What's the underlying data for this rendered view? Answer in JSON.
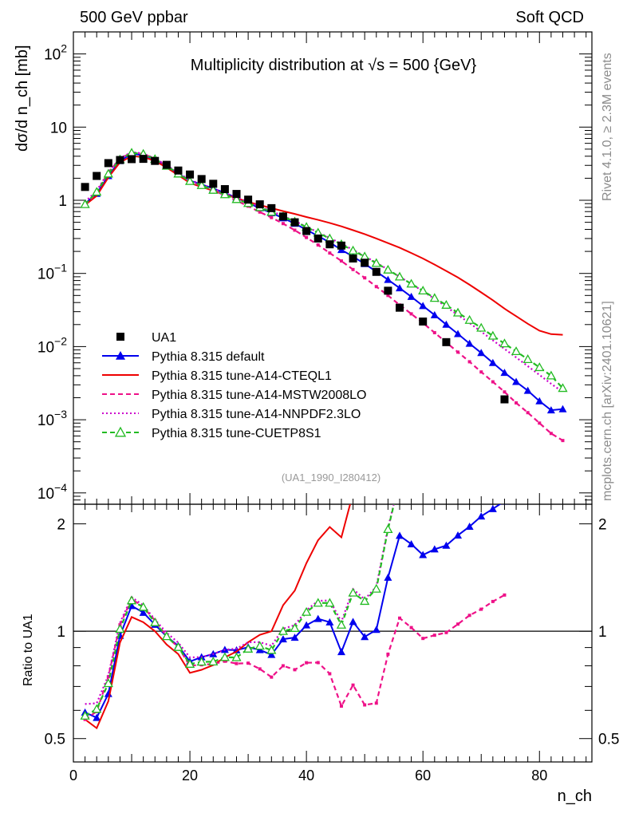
{
  "header": {
    "left": "500 GeV ppbar",
    "right": "Soft QCD"
  },
  "side_text": {
    "rivet": "Rivet 4.1.0, ≥ 2.3M events",
    "site": "mcplots.cern.ch [arXiv:2401.10621]"
  },
  "chart_data": {
    "type": "line",
    "title": "Multiplicity distribution at √s = 500 {GeV}",
    "analysis_label": "(UA1_1990_I280412)",
    "ylabel_main": "dσ/d n_ch [mb]",
    "ylabel_ratio": "Ratio to UA1",
    "xlabel": "n_ch",
    "xlim": [
      0,
      89
    ],
    "ylim_main": [
      7e-05,
      200
    ],
    "ylim_ratio": [
      0.43,
      2.27
    ],
    "yscale_main": "log",
    "yscale_ratio": "log",
    "x_ticks": [
      "0",
      "20",
      "40",
      "60",
      "80"
    ],
    "main_y_ticks": [
      "10^2",
      "10",
      "1",
      "10^-1",
      "10^-2",
      "10^-3",
      "10^-4"
    ],
    "ratio_y_ticks": [
      "2",
      "1",
      "0.5"
    ],
    "legend": [
      "UA1",
      "Pythia 8.315 default",
      "Pythia 8.315 tune-A14-CTEQL1",
      "Pythia 8.315 tune-A14-MSTW2008LO",
      "Pythia 8.315 tune-A14-NNPDF2.3LO",
      "Pythia 8.315 tune-CUETP8S1"
    ],
    "data": {
      "name": "UA1",
      "color": "#000000",
      "x": [
        2,
        4,
        6,
        8,
        10,
        12,
        14,
        16,
        18,
        20,
        22,
        24,
        26,
        28,
        30,
        32,
        34,
        36,
        38,
        40,
        42,
        44,
        46,
        48,
        50,
        52,
        54,
        56,
        60,
        64,
        74
      ],
      "y": [
        1.52,
        2.15,
        3.22,
        3.55,
        3.65,
        3.68,
        3.45,
        3.05,
        2.55,
        2.25,
        1.95,
        1.68,
        1.42,
        1.22,
        1.02,
        0.88,
        0.78,
        0.6,
        0.5,
        0.38,
        0.3,
        0.25,
        0.24,
        0.16,
        0.14,
        0.105,
        0.058,
        0.034,
        0.022,
        0.0115,
        0.0019
      ]
    },
    "x_mc": [
      2,
      4,
      6,
      8,
      10,
      12,
      14,
      16,
      18,
      20,
      22,
      24,
      26,
      28,
      30,
      32,
      34,
      36,
      38,
      40,
      42,
      44,
      46,
      48,
      50,
      52,
      54,
      56,
      58,
      60,
      62,
      64,
      66,
      68,
      70,
      72,
      74,
      76,
      78,
      80,
      82,
      84
    ],
    "series": [
      {
        "name": "Pythia 8.315 default",
        "color": "#0000ee",
        "style": "solid",
        "marker": "triangle-filled",
        "values": [
          0.9,
          1.23,
          2.15,
          3.45,
          4.3,
          4.15,
          3.6,
          2.95,
          2.32,
          1.85,
          1.65,
          1.45,
          1.26,
          1.08,
          0.92,
          0.78,
          0.67,
          0.57,
          0.48,
          0.395,
          0.325,
          0.265,
          0.21,
          0.17,
          0.135,
          0.106,
          0.082,
          0.063,
          0.048,
          0.036,
          0.027,
          0.02,
          0.0149,
          0.011,
          0.0082,
          0.006,
          0.0044,
          0.0033,
          0.0025,
          0.0018,
          0.00135,
          0.0014
        ]
      },
      {
        "name": "Pythia 8.315 tune-A14-CTEQL1",
        "color": "#ee0000",
        "style": "solid",
        "marker": "none",
        "values": [
          0.86,
          1.15,
          2.05,
          3.3,
          4.0,
          3.9,
          3.45,
          2.8,
          2.2,
          1.72,
          1.52,
          1.35,
          1.2,
          1.07,
          0.95,
          0.86,
          0.78,
          0.71,
          0.65,
          0.59,
          0.54,
          0.49,
          0.44,
          0.39,
          0.345,
          0.3,
          0.26,
          0.225,
          0.19,
          0.16,
          0.132,
          0.108,
          0.088,
          0.07,
          0.055,
          0.043,
          0.033,
          0.026,
          0.0205,
          0.0165,
          0.0148,
          0.0145
        ]
      },
      {
        "name": "Pythia 8.315 tune-A14-MSTW2008LO",
        "color": "#ee1188",
        "style": "dashed",
        "marker": "dot",
        "values": [
          0.86,
          1.28,
          2.4,
          3.7,
          4.5,
          4.3,
          3.7,
          2.95,
          2.3,
          1.8,
          1.57,
          1.36,
          1.17,
          0.99,
          0.83,
          0.69,
          0.58,
          0.48,
          0.39,
          0.31,
          0.245,
          0.19,
          0.148,
          0.113,
          0.087,
          0.066,
          0.05,
          0.037,
          0.028,
          0.021,
          0.0155,
          0.0114,
          0.0084,
          0.0062,
          0.0045,
          0.0033,
          0.0024,
          0.0017,
          0.00125,
          0.0009,
          0.00065,
          0.00052
        ]
      },
      {
        "name": "Pythia 8.315 tune-A14-NNPDF2.3LO",
        "color": "#cc00cc",
        "style": "dotted",
        "marker": "none",
        "values": [
          0.95,
          1.35,
          2.42,
          3.75,
          4.55,
          4.35,
          3.72,
          3.02,
          2.37,
          1.9,
          1.65,
          1.45,
          1.26,
          1.09,
          0.95,
          0.82,
          0.71,
          0.61,
          0.52,
          0.435,
          0.365,
          0.305,
          0.255,
          0.21,
          0.172,
          0.14,
          0.113,
          0.09,
          0.072,
          0.057,
          0.045,
          0.035,
          0.027,
          0.021,
          0.016,
          0.0122,
          0.0093,
          0.0071,
          0.0054,
          0.0041,
          0.0031,
          0.0024
        ]
      },
      {
        "name": "Pythia 8.315 tune-CUETP8S1",
        "color": "#22bb22",
        "style": "dashed",
        "marker": "triangle-open",
        "values": [
          0.88,
          1.3,
          2.3,
          3.6,
          4.45,
          4.3,
          3.65,
          2.95,
          2.3,
          1.82,
          1.6,
          1.38,
          1.2,
          1.03,
          0.91,
          0.8,
          0.69,
          0.6,
          0.51,
          0.43,
          0.36,
          0.3,
          0.25,
          0.205,
          0.17,
          0.138,
          0.112,
          0.09,
          0.072,
          0.058,
          0.046,
          0.037,
          0.029,
          0.023,
          0.018,
          0.014,
          0.011,
          0.0086,
          0.0067,
          0.0052,
          0.004,
          0.0027
        ]
      }
    ]
  }
}
